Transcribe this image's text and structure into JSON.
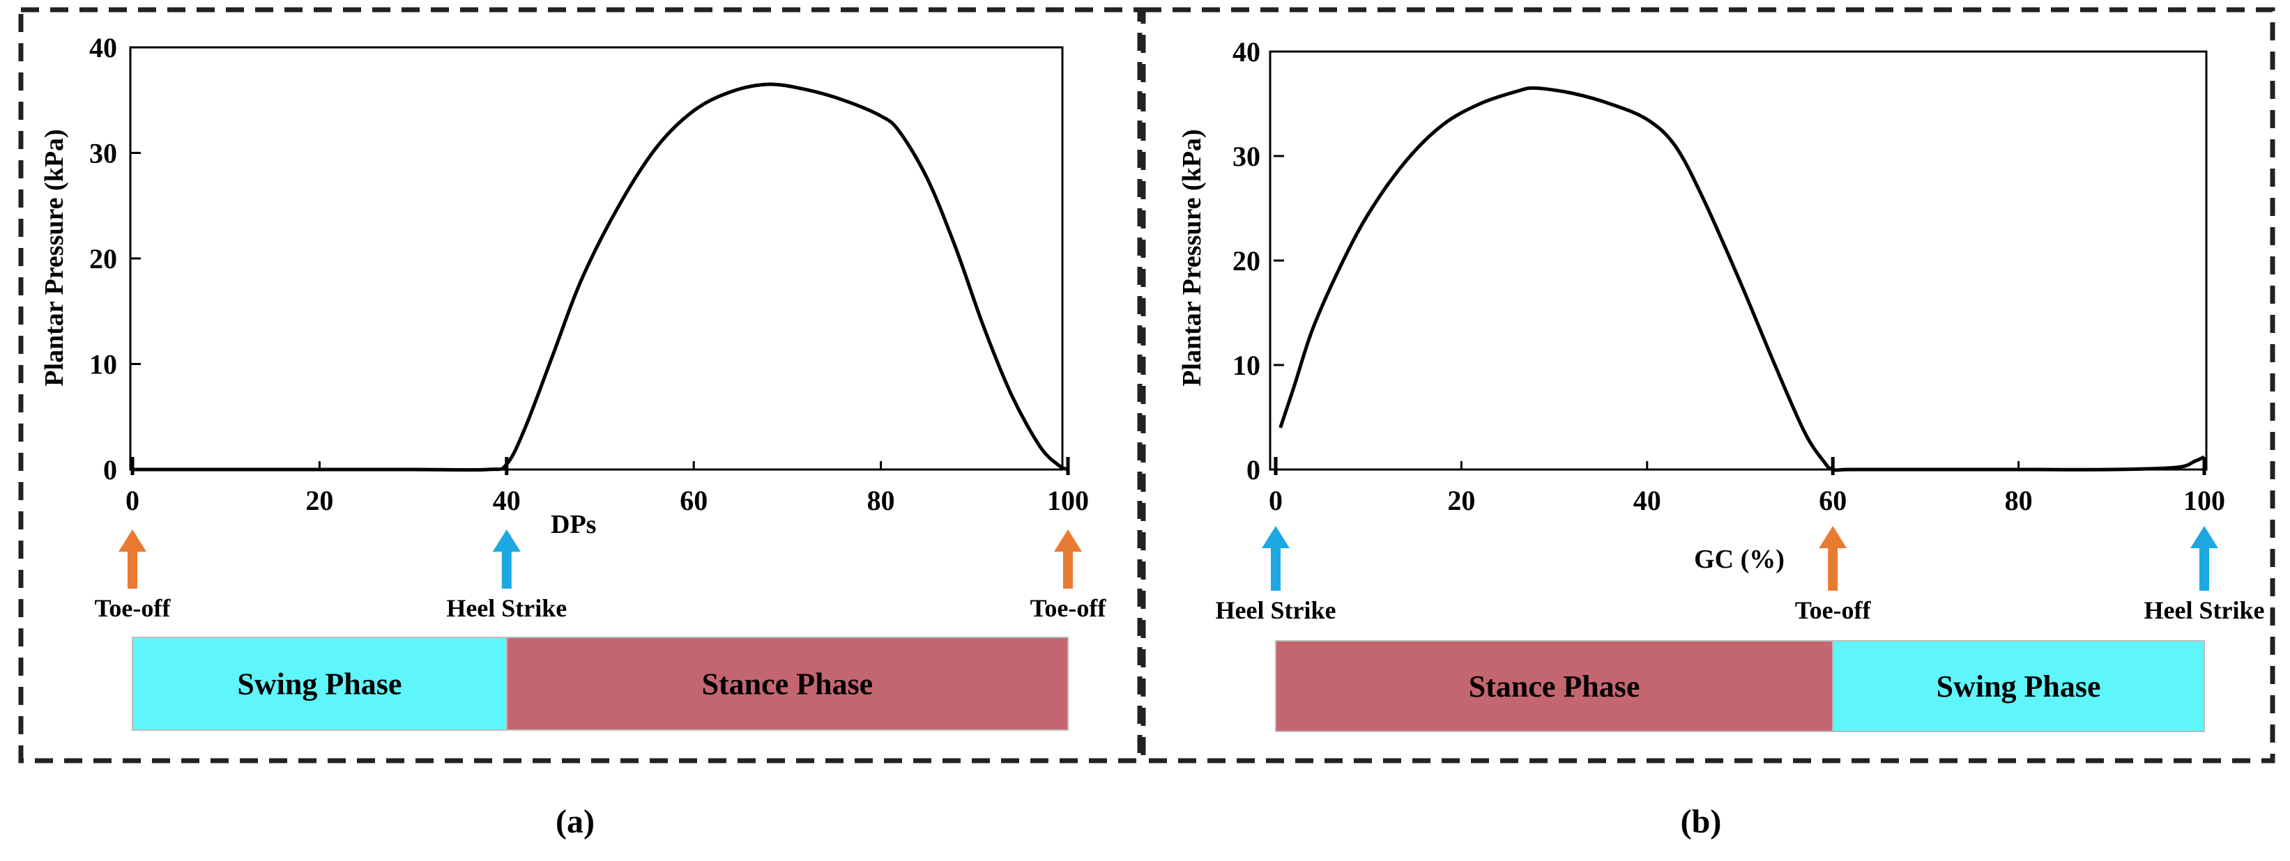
{
  "colors": {
    "swing": "#5ff6fb",
    "stance": "#c46670",
    "toe_off_arrow": "#e97a32",
    "heel_strike_arrow": "#1ea8e3",
    "curve": "#000000",
    "frame": "#222222"
  },
  "panels": [
    {
      "caption": "(a)",
      "events": [
        {
          "x": 0,
          "label": "Toe-off",
          "kind": "toe_off"
        },
        {
          "x": 40,
          "label": "Heel Strike",
          "kind": "heel_strike"
        },
        {
          "x": 100,
          "label": "Toe-off",
          "kind": "toe_off"
        }
      ],
      "phases": [
        {
          "from": 0,
          "to": 40,
          "label": "Swing Phase",
          "kind": "swing"
        },
        {
          "from": 40,
          "to": 100,
          "label": "Stance Phase",
          "kind": "stance"
        }
      ]
    },
    {
      "caption": "(b)",
      "events": [
        {
          "x": 0,
          "label": "Heel Strike",
          "kind": "heel_strike"
        },
        {
          "x": 60,
          "label": "Toe-off",
          "kind": "toe_off"
        },
        {
          "x": 100,
          "label": "Heel Strike",
          "kind": "heel_strike"
        }
      ],
      "phases": [
        {
          "from": 0,
          "to": 60,
          "label": "Stance Phase",
          "kind": "stance"
        },
        {
          "from": 60,
          "to": 100,
          "label": "Swing Phase",
          "kind": "swing"
        }
      ]
    }
  ],
  "chart_data": [
    {
      "type": "line",
      "title": "",
      "xlabel": "DPs",
      "ylabel": "Plantar Pressure (kPa)",
      "xlim": [
        0,
        100
      ],
      "ylim": [
        0,
        40
      ],
      "xticks": [
        0,
        20,
        40,
        60,
        80,
        100
      ],
      "yticks": [
        0,
        10,
        20,
        30,
        40
      ],
      "grid": false,
      "x": [
        0,
        10,
        20,
        30,
        38,
        40,
        42,
        45,
        48,
        52,
        56,
        60,
        64,
        68,
        72,
        76,
        80,
        82,
        85,
        88,
        91,
        94,
        97,
        99,
        100
      ],
      "y": [
        0,
        0,
        0,
        0,
        0,
        0.5,
        4,
        11,
        18,
        25,
        30.5,
        34,
        35.8,
        36.5,
        36,
        35,
        33.5,
        32,
        27.5,
        21,
        13.5,
        7,
        2.2,
        0.4,
        0
      ]
    },
    {
      "type": "line",
      "title": "",
      "xlabel": "GC (%)",
      "ylabel": "Plantar Pressure (kPa)",
      "xlim": [
        0,
        100
      ],
      "ylim": [
        0,
        40
      ],
      "xticks": [
        0,
        20,
        40,
        60,
        80,
        100
      ],
      "yticks": [
        0,
        10,
        20,
        30,
        40
      ],
      "grid": false,
      "x": [
        0.5,
        2,
        4,
        7,
        10,
        14,
        18,
        22,
        26,
        28,
        32,
        36,
        40,
        43,
        46,
        50,
        54,
        57,
        59,
        60,
        62,
        70,
        80,
        90,
        97,
        99,
        100
      ],
      "y": [
        4,
        8,
        13.5,
        19.5,
        24.5,
        29.5,
        33,
        35,
        36.2,
        36.5,
        36,
        35,
        33.5,
        31,
        26,
        18,
        9.5,
        3.5,
        0.8,
        0,
        0,
        0,
        0,
        0,
        0.2,
        0.8,
        1.2
      ]
    }
  ]
}
